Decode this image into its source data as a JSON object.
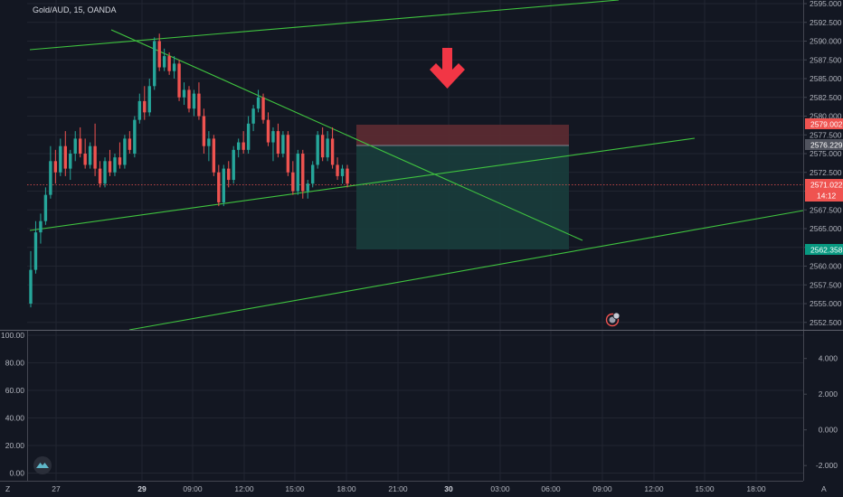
{
  "header": {
    "symbol_title": "Gold/AUD, 15, OANDA"
  },
  "colors": {
    "background": "#131722",
    "grid": "#222631",
    "up_candle": "#26a69a",
    "down_candle": "#ef5350",
    "trendline": "#3fc33f",
    "stop_zone": "#5a2a31",
    "target_zone": "#183b3b",
    "arrow": "#f23645",
    "axis_text": "#b2b5be"
  },
  "chart_data": {
    "type": "candlestick",
    "price_axis": {
      "ticks": [
        "2595.000",
        "2592.500",
        "2590.000",
        "2587.500",
        "2585.000",
        "2582.500",
        "2580.000",
        "2577.500",
        "2575.000",
        "2572.500",
        "2570.000",
        "2567.500",
        "2565.000",
        "2562.500",
        "2560.000",
        "2557.500",
        "2555.000",
        "2552.500"
      ],
      "range": [
        2552.0,
        2595.3
      ]
    },
    "time_axis": {
      "labels": [
        "27",
        "29",
        "09:00",
        "12:00",
        "15:00",
        "18:00",
        "21:00",
        "30",
        "03:00",
        "06:00",
        "09:00",
        "12:00",
        "15:00",
        "18:00"
      ],
      "bold": [
        "29",
        "30"
      ]
    },
    "last_price_label": "2571.022",
    "countdown": "14:12",
    "stop_price_label": "2579.002",
    "entry_price_label": "2576.229",
    "target_price_label": "2562.358",
    "left_indicator_axis": {
      "ticks": [
        "100.00",
        "80.00",
        "60.00",
        "40.00",
        "20.00",
        "0.00"
      ],
      "range": [
        0,
        100
      ]
    },
    "right_indicator_axis": {
      "ticks": [
        "4.000",
        "2.000",
        "0.000",
        "-2.000"
      ],
      "range": [
        -2.5,
        4.8
      ]
    },
    "position": {
      "side": "short",
      "entry": 2576.229,
      "stop": 2579.002,
      "target": 2562.358
    },
    "candles": [
      [
        2555.0,
        2562.0,
        2554.5,
        2559.5
      ],
      [
        2559.5,
        2566.0,
        2559.0,
        2564.5
      ],
      [
        2564.5,
        2567.0,
        2563.0,
        2566.0
      ],
      [
        2566.0,
        2570.5,
        2565.5,
        2569.5
      ],
      [
        2569.5,
        2576.0,
        2569.0,
        2574.0
      ],
      [
        2574.0,
        2575.5,
        2571.0,
        2572.5
      ],
      [
        2572.5,
        2577.0,
        2572.0,
        2576.0
      ],
      [
        2576.0,
        2578.0,
        2572.0,
        2573.0
      ],
      [
        2573.0,
        2575.5,
        2571.5,
        2575.0
      ],
      [
        2575.0,
        2578.0,
        2574.0,
        2577.0
      ],
      [
        2577.0,
        2578.5,
        2574.5,
        2575.0
      ],
      [
        2575.0,
        2577.0,
        2573.0,
        2573.5
      ],
      [
        2573.5,
        2576.5,
        2573.0,
        2576.0
      ],
      [
        2576.0,
        2579.0,
        2572.0,
        2573.0
      ],
      [
        2573.0,
        2574.0,
        2570.5,
        2571.0
      ],
      [
        2571.0,
        2574.5,
        2570.5,
        2574.0
      ],
      [
        2574.0,
        2575.5,
        2572.0,
        2572.5
      ],
      [
        2572.5,
        2575.0,
        2572.0,
        2574.5
      ],
      [
        2574.5,
        2576.5,
        2573.0,
        2573.5
      ],
      [
        2573.5,
        2577.5,
        2573.0,
        2577.0
      ],
      [
        2577.0,
        2578.0,
        2575.0,
        2575.5
      ],
      [
        2575.0,
        2580.0,
        2574.5,
        2579.5
      ],
      [
        2579.5,
        2583.0,
        2579.0,
        2582.0
      ],
      [
        2582.0,
        2584.0,
        2579.5,
        2580.5
      ],
      [
        2580.5,
        2585.0,
        2580.0,
        2584.0
      ],
      [
        2584.0,
        2590.5,
        2583.5,
        2590.0
      ],
      [
        2590.0,
        2591.0,
        2586.0,
        2586.5
      ],
      [
        2586.5,
        2589.0,
        2586.0,
        2588.0
      ],
      [
        2588.0,
        2588.5,
        2585.5,
        2586.0
      ],
      [
        2586.0,
        2588.0,
        2585.0,
        2587.0
      ],
      [
        2587.0,
        2587.5,
        2582.0,
        2582.5
      ],
      [
        2582.5,
        2584.5,
        2581.5,
        2583.5
      ],
      [
        2583.5,
        2584.0,
        2580.5,
        2581.0
      ],
      [
        2581.0,
        2583.5,
        2580.0,
        2583.0
      ],
      [
        2583.0,
        2584.5,
        2579.5,
        2580.0
      ],
      [
        2580.0,
        2581.0,
        2575.0,
        2576.0
      ],
      [
        2576.0,
        2578.0,
        2574.0,
        2577.0
      ],
      [
        2577.0,
        2577.5,
        2572.0,
        2572.5
      ],
      [
        2572.5,
        2573.5,
        2568.0,
        2568.5
      ],
      [
        2568.5,
        2573.5,
        2568.0,
        2573.0
      ],
      [
        2573.0,
        2574.0,
        2570.5,
        2571.5
      ],
      [
        2571.5,
        2576.0,
        2571.0,
        2575.5
      ],
      [
        2575.5,
        2577.0,
        2574.5,
        2576.5
      ],
      [
        2576.5,
        2578.0,
        2575.0,
        2575.5
      ],
      [
        2575.5,
        2580.0,
        2575.0,
        2579.0
      ],
      [
        2579.0,
        2581.5,
        2578.0,
        2581.0
      ],
      [
        2581.0,
        2583.5,
        2580.5,
        2582.5
      ],
      [
        2582.5,
        2583.0,
        2579.0,
        2579.5
      ],
      [
        2579.5,
        2580.5,
        2576.0,
        2576.5
      ],
      [
        2576.5,
        2578.5,
        2574.0,
        2578.0
      ],
      [
        2578.0,
        2579.0,
        2574.5,
        2575.0
      ],
      [
        2575.0,
        2578.0,
        2574.5,
        2577.5
      ],
      [
        2577.5,
        2578.0,
        2572.0,
        2572.5
      ],
      [
        2572.5,
        2574.0,
        2569.5,
        2570.0
      ],
      [
        2570.0,
        2575.5,
        2569.5,
        2575.0
      ],
      [
        2575.0,
        2575.5,
        2569.0,
        2570.0
      ],
      [
        2570.0,
        2571.5,
        2569.0,
        2571.0
      ],
      [
        2571.0,
        2574.0,
        2570.5,
        2573.5
      ],
      [
        2573.5,
        2578.0,
        2573.0,
        2577.5
      ],
      [
        2577.5,
        2578.5,
        2574.0,
        2574.5
      ],
      [
        2574.5,
        2578.0,
        2574.0,
        2577.0
      ],
      [
        2577.0,
        2578.5,
        2573.0,
        2573.5
      ],
      [
        2573.5,
        2574.5,
        2571.5,
        2572.0
      ],
      [
        2572.0,
        2573.5,
        2571.0,
        2573.0
      ],
      [
        2573.0,
        2573.5,
        2570.5,
        2571.0
      ]
    ]
  }
}
